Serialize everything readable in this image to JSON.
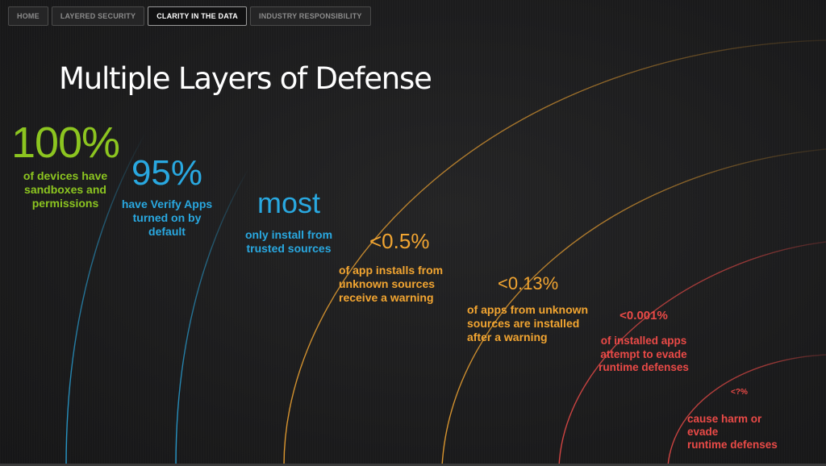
{
  "nav": {
    "items": [
      {
        "label": "HOME"
      },
      {
        "label": "LAYERED SECURITY"
      },
      {
        "label": "CLARITY IN THE DATA",
        "active": true
      },
      {
        "label": "INDUSTRY RESPONSIBILITY"
      }
    ]
  },
  "title": "Multiple Layers of Defense",
  "colors": {
    "green": "#8cc520",
    "blue": "#29a8e0",
    "orange": "#f2a531",
    "red": "#ea4a47"
  },
  "stats": [
    {
      "value": "100%",
      "desc_lines": [
        "of devices have",
        "sandboxes and",
        "permissions"
      ],
      "color": "green"
    },
    {
      "value": "95%",
      "desc_lines": [
        "have Verify Apps",
        "turned on by",
        "default"
      ],
      "color": "blue"
    },
    {
      "value": "most",
      "desc_lines": [
        "only install from",
        "trusted sources"
      ],
      "color": "blue"
    },
    {
      "value": "<0.5%",
      "desc_lines": [
        "of app installs from",
        "unknown sources",
        "receive a warning"
      ],
      "color": "orange"
    },
    {
      "value": "<0.13%",
      "desc_lines": [
        "of apps from unknown",
        "sources are installed",
        "after a warning"
      ],
      "color": "orange"
    },
    {
      "value": "<0.001%",
      "desc_lines": [
        "of installed apps",
        "attempt to evade",
        "runtime defenses"
      ],
      "color": "red"
    },
    {
      "value": "<?%",
      "desc_lines": [
        "cause harm or evade",
        "runtime defenses"
      ],
      "color": "red"
    }
  ]
}
